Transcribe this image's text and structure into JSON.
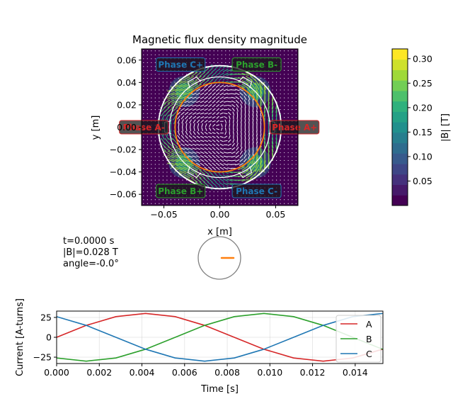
{
  "chart_data": [
    {
      "type": "heatmap",
      "title": "Magnetic flux density magnitude",
      "xlabel": "x [m]",
      "ylabel": "y [m]",
      "xlim": [
        -0.07,
        0.07
      ],
      "ylim": [
        -0.07,
        0.07
      ],
      "xticks": [
        -0.05,
        0.0,
        0.05
      ],
      "xtick_labels": [
        "−0.05",
        "0.00",
        "0.05"
      ],
      "yticks": [
        0.06,
        0.04,
        0.02,
        0.0,
        -0.02,
        -0.04,
        -0.06
      ],
      "ytick_labels": [
        "0.06",
        "0.04",
        "0.02",
        "0.00",
        "−0.02",
        "−0.04",
        "−0.06"
      ],
      "colormap": "viridis",
      "colorbar": {
        "label": "|B| [T]",
        "range": [
          0.0,
          0.32
        ],
        "ticks": [
          0.05,
          0.1,
          0.15,
          0.2,
          0.25,
          0.3
        ],
        "tick_labels": [
          "0.05",
          "0.10",
          "0.15",
          "0.20",
          "0.25",
          "0.30"
        ]
      },
      "stator_outer_radius": 0.055,
      "stator_inner_radius": 0.045,
      "rotor_radius": 0.04,
      "rotor_color": "#ff7f0e",
      "phase_labels": [
        {
          "text": "Phase C+",
          "x": -0.035,
          "y": 0.056,
          "color": "#1f77b4"
        },
        {
          "text": "Phase B-",
          "x": 0.033,
          "y": 0.056,
          "color": "#2ca02c"
        },
        {
          "text": "Phase A-",
          "x": -0.068,
          "y": 0.0,
          "color": "#d62728"
        },
        {
          "text": "Phase A+",
          "x": 0.067,
          "y": 0.0,
          "color": "#d62728"
        },
        {
          "text": "Phase B+",
          "x": -0.035,
          "y": -0.057,
          "color": "#2ca02c"
        },
        {
          "text": "Phase C-",
          "x": 0.033,
          "y": -0.057,
          "color": "#1f77b4"
        }
      ],
      "slot_angles_deg": [
        0,
        60,
        120,
        180,
        240,
        300
      ]
    },
    {
      "type": "line",
      "xlabel": "Time [s]",
      "ylabel": "Current [A-turns]",
      "xlim": [
        0.0,
        0.0153
      ],
      "ylim": [
        -33,
        33
      ],
      "xticks": [
        0.0,
        0.002,
        0.004,
        0.006,
        0.008,
        0.01,
        0.012,
        0.014
      ],
      "xtick_labels": [
        "0.000",
        "0.002",
        "0.004",
        "0.006",
        "0.008",
        "0.010",
        "0.012",
        "0.014"
      ],
      "yticks": [
        25,
        0,
        -25
      ],
      "ytick_labels": [
        "25",
        "0",
        "−25"
      ],
      "grid": true,
      "legend": "upper right",
      "x": [
        0.0,
        0.00139,
        0.00278,
        0.00417,
        0.00556,
        0.00694,
        0.00833,
        0.00972,
        0.01111,
        0.0125,
        0.01389,
        0.01528
      ],
      "series": [
        {
          "name": "A",
          "color": "#d62728",
          "values": [
            0.0,
            15.0,
            26.0,
            30.0,
            26.0,
            15.0,
            0.0,
            -15.0,
            -26.0,
            -30.0,
            -26.0,
            -15.0
          ]
        },
        {
          "name": "B",
          "color": "#2ca02c",
          "values": [
            -26.0,
            -30.0,
            -26.0,
            -15.0,
            0.0,
            15.0,
            26.0,
            30.0,
            26.0,
            15.0,
            0.0,
            -15.0
          ]
        },
        {
          "name": "C",
          "color": "#1f77b4",
          "values": [
            26.0,
            15.0,
            0.0,
            -15.0,
            -26.0,
            -30.0,
            -26.0,
            -15.0,
            0.0,
            15.0,
            26.0,
            30.0
          ]
        }
      ]
    }
  ],
  "readout": {
    "time": "t=0.0000 s",
    "field": "|B|=0.028 T",
    "angle": "angle=-0.0°"
  },
  "rotor_indicator": {
    "angle_deg": 0.0,
    "color": "#ff7f0e"
  }
}
